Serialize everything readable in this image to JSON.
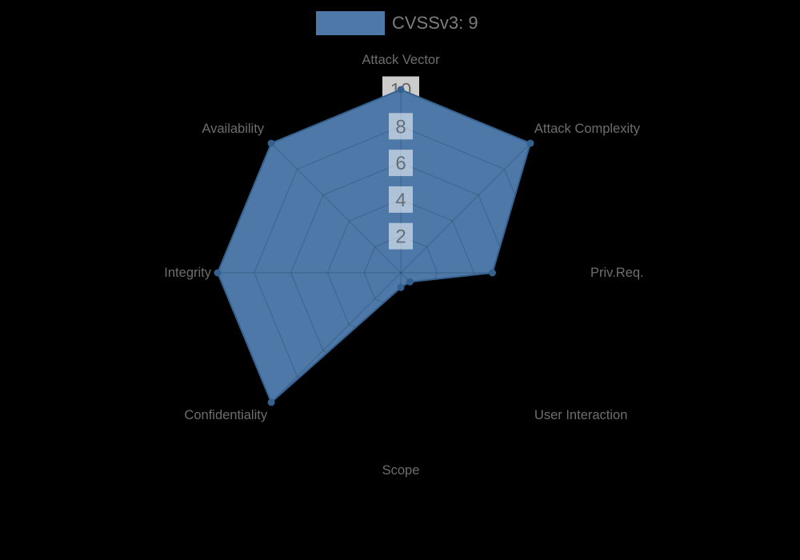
{
  "chart_data": {
    "type": "radar",
    "title": "",
    "categories": [
      "Attack Vector",
      "Attack Complexity",
      "Priv.Req.",
      "User Interaction",
      "Scope",
      "Confidentiality",
      "Integrity",
      "Availability"
    ],
    "series": [
      {
        "name": "CVSSv3: 9",
        "values": [
          10,
          10,
          5,
          0.7,
          0.8,
          10,
          10,
          10
        ],
        "fill_color": "#4d78a8",
        "line_color": "#35618f"
      }
    ],
    "radial_ticks": [
      2,
      4,
      6,
      8,
      10
    ],
    "rlim": [
      0,
      10
    ],
    "grid": true,
    "legend_position": "top",
    "colors": {
      "background": "#000000",
      "grid_line": "rgba(0,0,0,0.15)",
      "axis_label": "#6e6e6e",
      "tick_label": "#666e79",
      "tick10_label": "#696969",
      "tick_backdrop": "rgba(255,255,255,0.55)",
      "tick10_backdrop": "rgba(255,255,255,0.8)",
      "legend_text": "#7d7d7d"
    }
  }
}
